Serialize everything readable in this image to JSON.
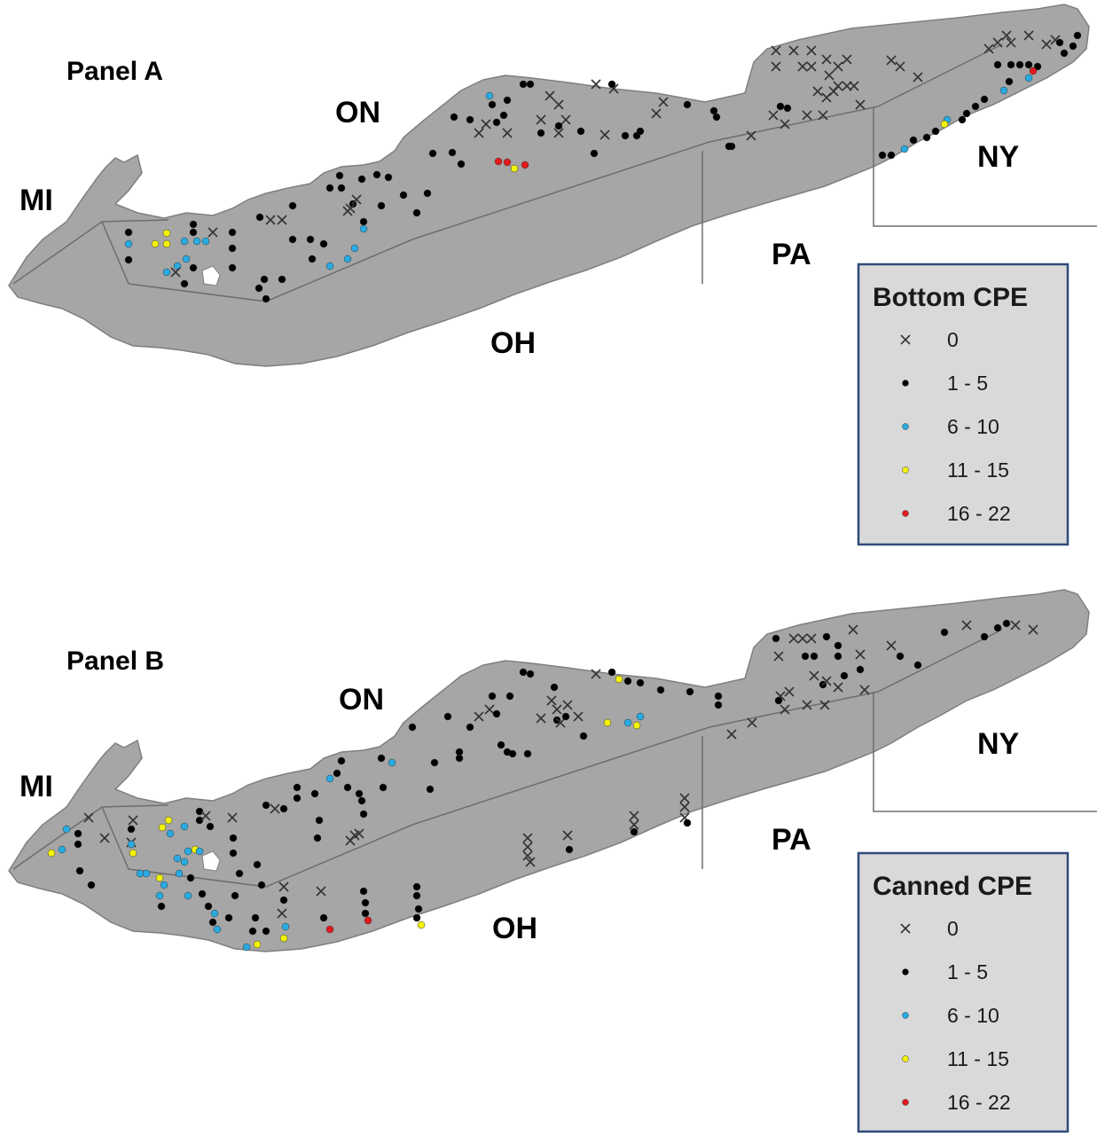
{
  "panels": [
    {
      "id": "A",
      "label": "Panel A",
      "regions": {
        "mi": "MI",
        "on": "ON",
        "ny": "NY",
        "pa": "PA",
        "oh": "OH"
      },
      "legend": {
        "title": "Bottom CPE",
        "items": [
          {
            "label": "0",
            "symbol": "cross",
            "color": "#333333"
          },
          {
            "label": "1 - 5",
            "symbol": "dot",
            "color": "#000000"
          },
          {
            "label": "6 - 10",
            "symbol": "dot",
            "color": "#29abe2"
          },
          {
            "label": "11 - 15",
            "symbol": "dot",
            "color": "#f2f20a"
          },
          {
            "label": "16 - 22",
            "symbol": "dot",
            "color": "#e31a1c"
          }
        ]
      }
    },
    {
      "id": "B",
      "label": "Panel B",
      "regions": {
        "mi": "MI",
        "on": "ON",
        "ny": "NY",
        "pa": "PA",
        "oh": "OH"
      },
      "legend": {
        "title": "Canned CPE",
        "items": [
          {
            "label": "0",
            "symbol": "cross",
            "color": "#333333"
          },
          {
            "label": "1 - 5",
            "symbol": "dot",
            "color": "#000000"
          },
          {
            "label": "6 - 10",
            "symbol": "dot",
            "color": "#29abe2"
          },
          {
            "label": "11 - 15",
            "symbol": "dot",
            "color": "#f2f20a"
          },
          {
            "label": "16 - 22",
            "symbol": "dot",
            "color": "#e31a1c"
          }
        ]
      }
    }
  ],
  "colors": {
    "lake": "#a6a6a6",
    "lake_edge": "#7f7f7f",
    "boundary": "#6e6e6e",
    "legend_bg": "#d9d9d9",
    "legend_border": "#2f4a7a"
  }
}
